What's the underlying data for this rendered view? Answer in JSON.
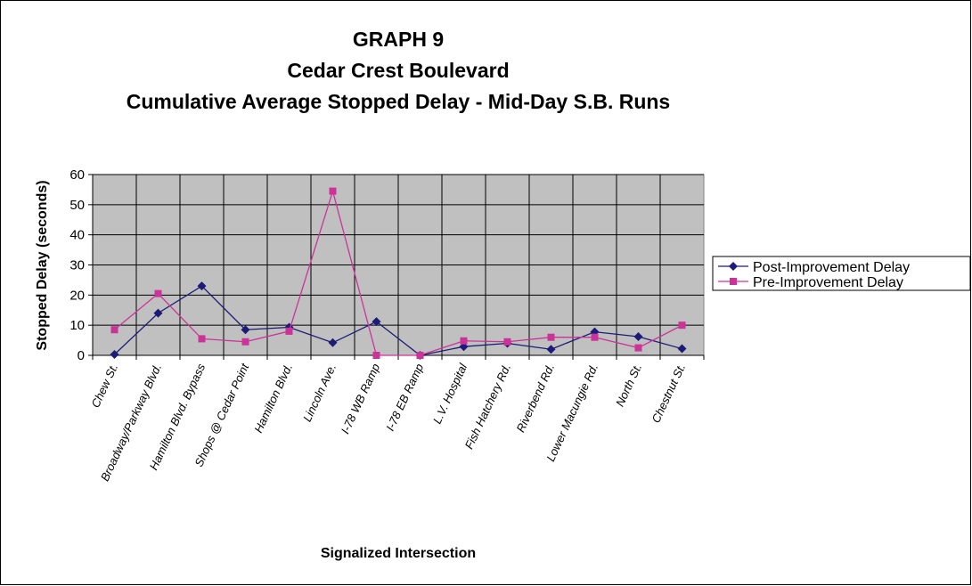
{
  "chart_data": {
    "type": "line",
    "title": [
      "GRAPH 9",
      "Cedar Crest Boulevard",
      "Cumulative Average Stopped Delay - Mid-Day S.B. Runs"
    ],
    "x_label": "Signalized Intersection",
    "y_label": "Stopped Delay (seconds)",
    "categories": [
      "Chew St.",
      "Broadway/Parkway Blvd.",
      "Hamilton Blvd. Bypass",
      "Shops @ Cedar Point",
      "Hamilton Blvd.",
      "Lincoln Ave.",
      "I-78 WB Ramp",
      "I-78 EB Ramp",
      "L.V. Hospital",
      "Fish Hatchery Rd.",
      "Riverbend Rd.",
      "Lower Macungie Rd.",
      "North St.",
      "Chestnut St."
    ],
    "series": [
      {
        "name": "Post-Improvement Delay",
        "color": "#1c1c78",
        "marker": "diamond",
        "values": [
          0.3,
          14,
          23,
          8.5,
          9.3,
          4.2,
          11.2,
          0,
          2.9,
          4,
          2,
          7.8,
          6.2,
          2.2
        ]
      },
      {
        "name": "Pre-Improvement Delay",
        "color": "#cc3399",
        "marker": "square",
        "values": [
          8.5,
          20.5,
          5.5,
          4.5,
          8,
          54.5,
          0,
          0,
          4.8,
          4.5,
          6,
          6,
          2.5,
          10
        ]
      }
    ],
    "ylim": [
      0,
      60
    ],
    "yticks": [
      0,
      10,
      20,
      30,
      40,
      50,
      60
    ],
    "grid": true,
    "plot_background": "#c0c0c0",
    "legend": "right"
  }
}
